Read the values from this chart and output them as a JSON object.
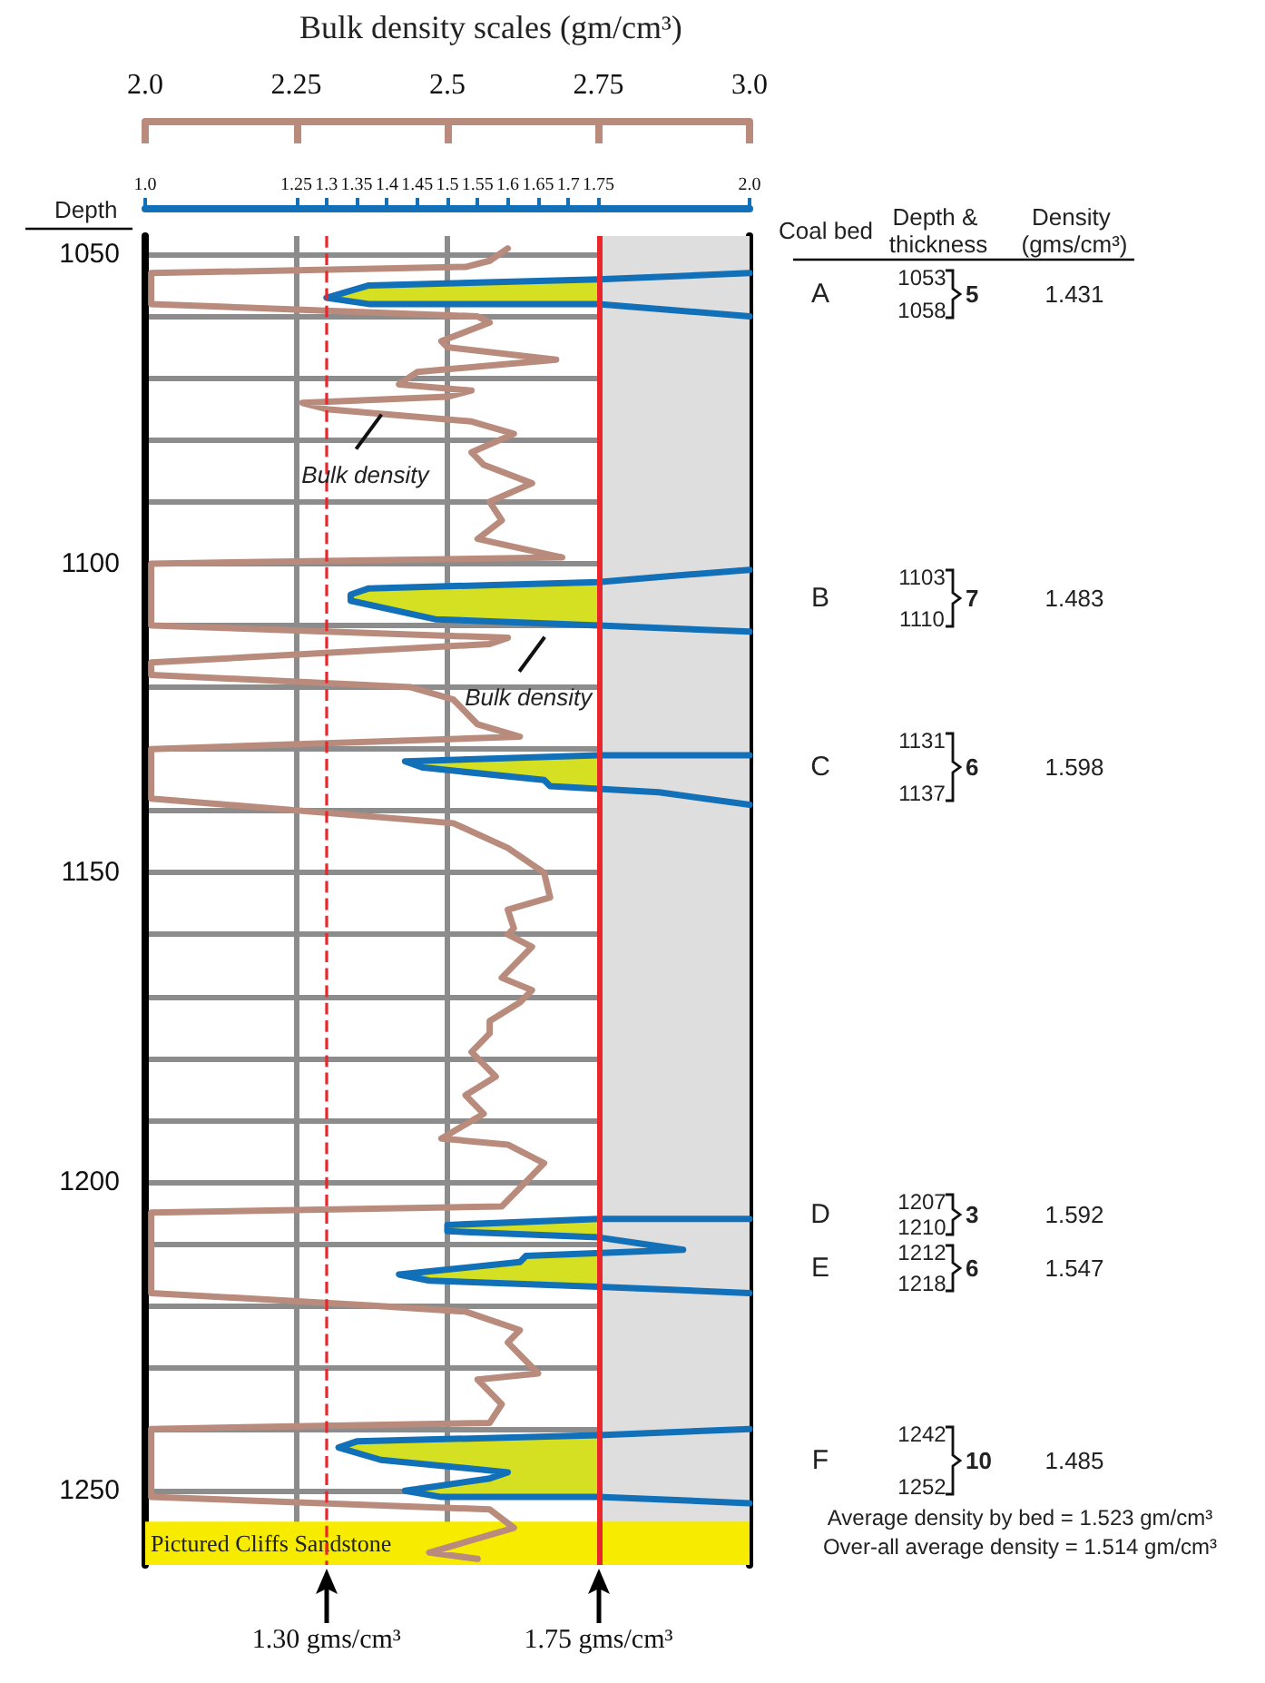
{
  "chart_data": {
    "type": "line",
    "title": "Bulk density scales (gm/cm³)",
    "ylabel": "Depth",
    "xlim": [
      1.0,
      2.0
    ],
    "xticks": [
      {
        "value": 1.0,
        "label": "1.0"
      },
      1.25,
      1.3,
      1.35,
      1.4,
      1.45,
      1.5,
      1.55,
      1.6,
      1.65,
      1.7,
      1.75,
      {
        "value": 2.0,
        "label": "2.0"
      }
    ],
    "x2lim": [
      2.0,
      3.0
    ],
    "x2ticks": [
      {
        "value": 2.0,
        "label": "2.0"
      },
      2.25,
      2.5,
      2.75,
      {
        "value": 3.0,
        "label": "3.0"
      }
    ],
    "ylim": [
      1262,
      1047
    ],
    "yticks": [
      1050,
      {
        "value": 1060,
        "label": null
      },
      {
        "value": 1070,
        "label": null
      },
      {
        "value": 1080,
        "label": null
      },
      {
        "value": 1090,
        "label": null
      },
      1100,
      {
        "value": 1110,
        "label": null
      },
      {
        "value": 1120,
        "label": null
      },
      {
        "value": 1130,
        "label": null
      },
      {
        "value": 1140,
        "label": null
      },
      1150,
      {
        "value": 1160,
        "label": null
      },
      {
        "value": 1170,
        "label": null
      },
      {
        "value": 1180,
        "label": null
      },
      {
        "value": 1190,
        "label": null
      },
      1200,
      {
        "value": 1210,
        "label": null
      },
      {
        "value": 1220,
        "label": null
      },
      {
        "value": 1230,
        "label": null
      },
      {
        "value": 1240,
        "label": null
      },
      1250
    ],
    "grid": true,
    "series": [
      {
        "type": "area",
        "color": "#d4e021",
        "x": [
          1.75,
          1.37,
          1.3,
          1.37,
          1.75,
          null,
          1.75,
          1.37,
          1.34,
          1.34,
          1.48,
          1.75,
          null,
          1.75,
          1.43,
          1.46,
          1.66,
          1.67,
          1.75,
          null,
          1.75,
          1.5,
          1.5,
          1.75,
          null,
          1.75,
          1.63,
          1.62,
          1.42,
          1.47,
          1.75,
          null,
          1.75,
          1.35,
          1.32,
          1.39,
          1.6,
          1.57,
          1.43,
          1.49,
          1.75
        ],
        "values": [
          1054,
          1055,
          1057,
          1058,
          1058,
          null,
          1103,
          1104,
          1105,
          1106,
          1109,
          1110,
          null,
          1131,
          1132,
          1133,
          1135,
          1136,
          1136,
          null,
          1206,
          1207,
          1208,
          1209,
          null,
          1212,
          1212,
          1213,
          1215,
          1216,
          1217,
          null,
          1241,
          1242,
          1243,
          1245,
          1247,
          1248,
          1250,
          1251,
          1251
        ]
      },
      {
        "color": "#b98b7d",
        "axis": "x2",
        "x": [
          2.6,
          2.57,
          2.53,
          2.01,
          2.01,
          2.55,
          2.57,
          2.49,
          2.5,
          2.68,
          2.45,
          2.42,
          2.54,
          2.5,
          2.26,
          2.3,
          2.54,
          2.61,
          2.54,
          2.56,
          2.64,
          2.57,
          2.59,
          2.55,
          2.69,
          2.01,
          2.01,
          2.6,
          2.57,
          2.01,
          2.01,
          2.44,
          2.51,
          2.55,
          2.62,
          2.01,
          2.01,
          2.51,
          2.6,
          2.66,
          2.67,
          2.6,
          2.61,
          2.6,
          2.64,
          2.59,
          2.64,
          2.62,
          2.57,
          2.57,
          2.54,
          2.58,
          2.53,
          2.56,
          2.49,
          2.6,
          2.66,
          2.63,
          2.59,
          2.01,
          2.01,
          2.37,
          2.53,
          2.62,
          2.6,
          2.63,
          2.65,
          2.55,
          2.59,
          2.57,
          2.01,
          2.01,
          2.57,
          2.61,
          2.47,
          2.55
        ],
        "values": [
          1049,
          1051,
          1052,
          1053,
          1058,
          1060,
          1061,
          1064,
          1065,
          1067,
          1069,
          1071,
          1072,
          1073,
          1074,
          1075,
          1077,
          1079,
          1082,
          1084,
          1087,
          1090,
          1093,
          1096,
          1099,
          1100,
          1110,
          1112,
          1113,
          1116,
          1118,
          1120,
          1122,
          1126,
          1128,
          1130,
          1138,
          1142,
          1146,
          1150,
          1154,
          1156,
          1159,
          1160,
          1162,
          1167,
          1169,
          1171,
          1174,
          1176,
          1179,
          1183,
          1186,
          1189,
          1193,
          1194,
          1197,
          1200,
          1204,
          1205,
          1218,
          1220,
          1221,
          1224,
          1226,
          1229,
          1231,
          1232,
          1236,
          1239,
          1240,
          1251,
          1253,
          1256,
          1260,
          1261
        ]
      },
      {
        "color": "#1170b8",
        "x": [
          2.0,
          1.75,
          1.37,
          1.3,
          1.37,
          1.75,
          2.0,
          null,
          2.0,
          1.87,
          1.75,
          1.37,
          1.34,
          1.34,
          1.48,
          1.75,
          2.0,
          null,
          2.0,
          1.75,
          1.43,
          1.46,
          1.66,
          1.67,
          1.85,
          2.0,
          null,
          2.0,
          1.75,
          1.5,
          1.5,
          1.75,
          1.82,
          1.89,
          1.63,
          1.62,
          1.42,
          1.47,
          1.75,
          2.0,
          null,
          2.0,
          1.75,
          1.35,
          1.32,
          1.39,
          1.6,
          1.57,
          1.43,
          1.49,
          1.75,
          2.0
        ],
        "values": [
          1053,
          1054,
          1055,
          1057,
          1058,
          1058,
          1060,
          null,
          1101,
          1102,
          1103,
          1104,
          1105,
          1106,
          1109,
          1110,
          1111,
          null,
          1131,
          1131,
          1132,
          1133,
          1135,
          1136,
          1137,
          1139,
          null,
          1206,
          1206,
          1207,
          1208,
          1209,
          1210,
          1211,
          1212,
          1213,
          1215,
          1216,
          1217,
          1218,
          null,
          1240,
          1241,
          1242,
          1243,
          1245,
          1247,
          1248,
          1250,
          1251,
          1251,
          1252
        ]
      }
    ],
    "ref_lines": [
      {
        "axis": "x",
        "value": 1.3,
        "label": "1.30 gms/cm³",
        "color": "#e8262b",
        "line_style": "dashed"
      },
      {
        "axis": "x",
        "value": 1.75,
        "label": "1.75 gms/cm³",
        "color": "#e8262b",
        "line_style": "solid"
      }
    ],
    "bands": [
      {
        "axis": "x",
        "from": 1.75,
        "to": 2.0,
        "color": "#dedede"
      },
      {
        "axis": "y",
        "from": 1255,
        "to": 1262,
        "label": "Pictured Cliffs Sandstone",
        "color": "#f7ec00"
      }
    ],
    "annotations": [
      {
        "text": "Bulk density",
        "x": 1.4,
        "y": 1075
      },
      {
        "text": "Bulk density",
        "x": 1.67,
        "y": 1111
      },
      "Coal bed",
      "Depth & thickness",
      "Density (gms/cm³)",
      "A",
      "1053",
      "1058",
      "5",
      "1.431",
      "B",
      "1103",
      "1110",
      "7",
      "1.483",
      "C",
      "1131",
      "1137",
      "6",
      "1.598",
      "D",
      "1207",
      "1210",
      "3",
      "1.592",
      "E",
      "1212",
      "1218",
      "6",
      "1.547",
      "F",
      "1242",
      "1252",
      "10",
      "1.485",
      "Average density by bed = 1.523 gm/cm³",
      "Over-all average density = 1.514 gm/cm³"
    ]
  }
}
